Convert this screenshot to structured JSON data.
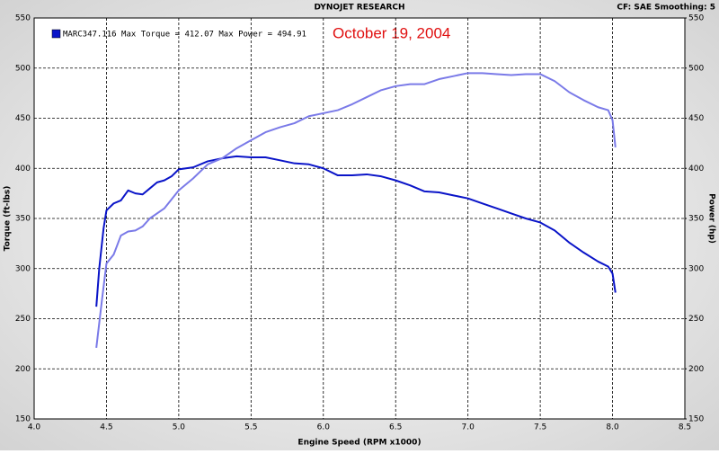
{
  "chart_data": {
    "type": "line",
    "title": "DYNOJET RESEARCH",
    "subtitle": "CF: SAE  Smoothing: 5",
    "legend": "MARC347.116 Max Torque = 412.07 Max Power = 494.91",
    "annotation": "October 19, 2004",
    "xlabel": "Engine Speed (RPM x1000)",
    "ylabel": "Torque (ft-lbs)",
    "y2label": "Power (hp)",
    "xlim": [
      4.0,
      8.5
    ],
    "xticks": [
      {
        "value": 4.0,
        "label": "4.0"
      },
      {
        "value": 4.5,
        "label": "4.5"
      },
      {
        "value": 5.0,
        "label": "5.0"
      },
      {
        "value": 5.5,
        "label": "5.5"
      },
      {
        "value": 6.0,
        "label": "6.0"
      },
      {
        "value": 6.5,
        "label": "6.5"
      },
      {
        "value": 7.0,
        "label": "7.0"
      },
      {
        "value": 7.5,
        "label": "7.5"
      },
      {
        "value": 8.0,
        "label": "8.0"
      },
      {
        "value": 8.5,
        "label": "8.5"
      }
    ],
    "ylim": [
      150,
      550
    ],
    "yticks": [
      150,
      200,
      250,
      300,
      350,
      400,
      450,
      500,
      550
    ],
    "y2lim": [
      150,
      550
    ],
    "y2ticks": [
      150,
      200,
      250,
      300,
      350,
      400,
      450,
      500,
      550
    ],
    "grid": true,
    "series": [
      {
        "color": "#0a14c8",
        "x": [
          4.43,
          4.45,
          4.48,
          4.5,
          4.55,
          4.6,
          4.65,
          4.7,
          4.75,
          4.8,
          4.85,
          4.9,
          4.95,
          5.0,
          5.1,
          5.2,
          5.3,
          5.4,
          5.5,
          5.6,
          5.7,
          5.8,
          5.9,
          6.0,
          6.1,
          6.2,
          6.3,
          6.4,
          6.5,
          6.6,
          6.7,
          6.8,
          6.9,
          7.0,
          7.1,
          7.2,
          7.3,
          7.4,
          7.5,
          7.6,
          7.7,
          7.8,
          7.9,
          7.97,
          8.0,
          8.02
        ],
        "values": [
          262,
          300,
          340,
          358,
          365,
          368,
          378,
          375,
          374,
          380,
          386,
          388,
          392,
          399,
          401,
          407,
          410,
          412,
          411,
          411,
          408,
          405,
          404,
          400,
          393,
          393,
          394,
          392,
          388,
          383,
          377,
          376,
          373,
          370,
          365,
          360,
          355,
          350,
          346,
          338,
          326,
          316,
          307,
          302,
          295,
          276
        ]
      },
      {
        "color": "#7a7ae8",
        "axis": "y2",
        "x": [
          4.43,
          4.47,
          4.5,
          4.55,
          4.6,
          4.65,
          4.7,
          4.75,
          4.8,
          4.9,
          5.0,
          5.1,
          5.2,
          5.3,
          5.4,
          5.5,
          5.6,
          5.7,
          5.8,
          5.9,
          6.0,
          6.1,
          6.2,
          6.3,
          6.4,
          6.5,
          6.6,
          6.7,
          6.8,
          6.9,
          7.0,
          7.1,
          7.2,
          7.3,
          7.4,
          7.5,
          7.6,
          7.7,
          7.8,
          7.9,
          7.97,
          8.0,
          8.02
        ],
        "values": [
          221,
          270,
          305,
          314,
          333,
          337,
          338,
          342,
          350,
          360,
          378,
          390,
          404,
          410,
          420,
          428,
          436,
          441,
          445,
          452,
          455,
          458,
          464,
          471,
          478,
          482,
          484,
          484,
          489,
          492,
          495,
          495,
          494,
          493,
          494,
          494,
          487,
          476,
          468,
          461,
          458,
          448,
          421
        ]
      }
    ]
  }
}
